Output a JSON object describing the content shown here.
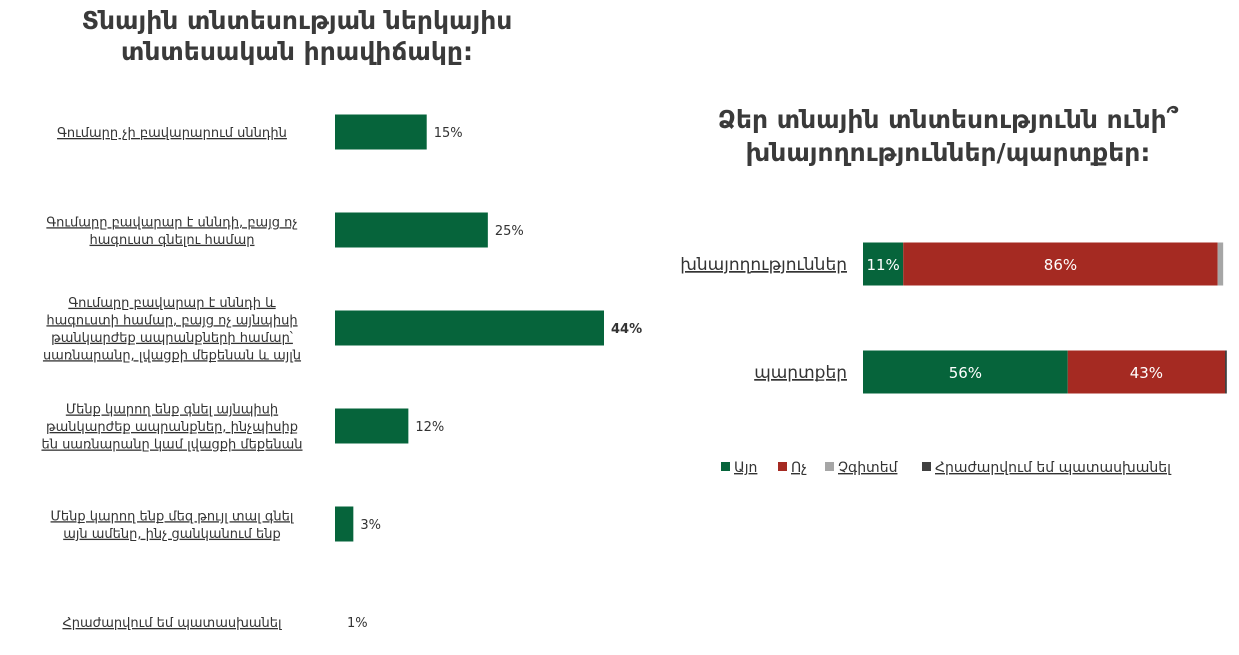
{
  "colors": {
    "green": "#06643B",
    "red": "#A52A22",
    "gray": "#A6A6A6",
    "dark": "#404040"
  },
  "chart_data": [
    {
      "type": "bar",
      "orientation": "horizontal",
      "title": [
        "Տնային տնտեսության ներկայիս",
        "տնտեսական իրավիճակը:"
      ],
      "categories": [
        [
          "Գումարը չի բավարարում սննդին"
        ],
        [
          "Գումարը բավարար է սննդի, բայց ոչ",
          "հագուստ գնելու համար"
        ],
        [
          "Գումարը բավարար է սննդի և",
          "հագուստի համար, բայց ոչ այնպիսի",
          "թանկարժեք ապրանքների համար՝",
          "սառնարանը, լվացքի մեքենան և այլն"
        ],
        [
          "Մենք կարող ենք գնել այնպիսի",
          "թանկարժեք ապրանքներ, ինչպիսիք",
          "են սառնարանը կամ լվացքի մեքենան"
        ],
        [
          "Մենք կարող ենք մեզ թույլ տալ գնել",
          "այն ամենը, ինչ ցանկանում ենք"
        ],
        [
          "Հրաժարվում եմ պատասխանել"
        ]
      ],
      "values": [
        15,
        25,
        44,
        12,
        3,
        1
      ],
      "labels": [
        "15%",
        "25%",
        "44%",
        "12%",
        "3%",
        "1%"
      ],
      "highlight_index": 2,
      "xlim": [
        0,
        50
      ],
      "grid": false,
      "legend": "none"
    },
    {
      "type": "bar",
      "orientation": "horizontal",
      "stacked": true,
      "title": [
        "Ձեր տնային տնտեսությունն ունի՞",
        "խնայողություններ/պարտքեր:"
      ],
      "categories": [
        "խնայողություններ",
        "պարտքեր"
      ],
      "series": [
        {
          "name": "Այո",
          "values": [
            11,
            56
          ],
          "labels": [
            "11%",
            "56%"
          ]
        },
        {
          "name": "Ոչ",
          "values": [
            86,
            43
          ],
          "labels": [
            "86%",
            "43%"
          ]
        },
        {
          "name": "Չգիտեմ",
          "values": [
            1.5,
            0
          ],
          "labels": [
            "",
            ""
          ]
        },
        {
          "name": "Հրաժարվում եմ պատասխանել",
          "values": [
            0,
            0.5
          ],
          "labels": [
            "",
            ""
          ]
        }
      ],
      "xlim": [
        0,
        99
      ],
      "grid": false,
      "legend": "bottom"
    }
  ]
}
